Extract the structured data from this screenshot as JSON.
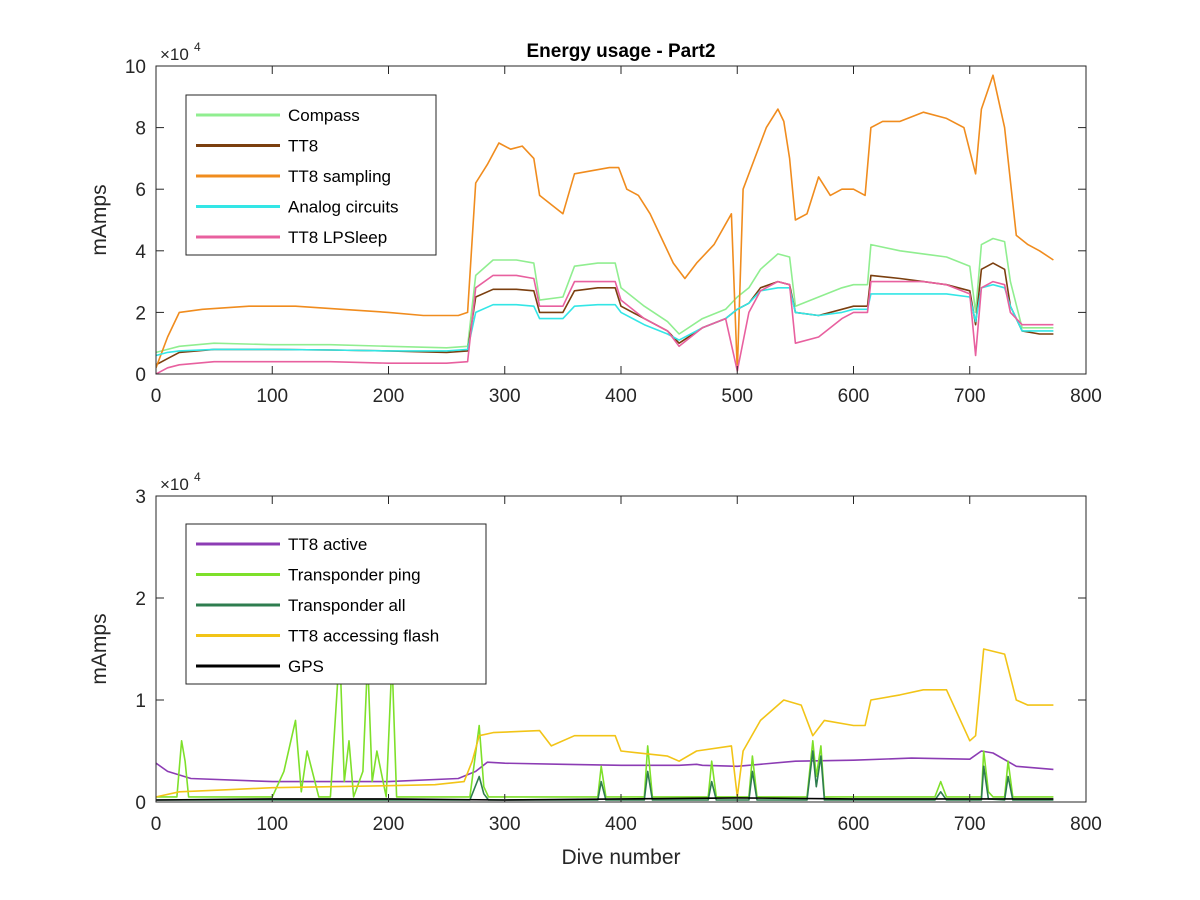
{
  "chart_data": [
    {
      "type": "line",
      "title": "Energy usage - Part2",
      "xlabel": "",
      "ylabel": "mAmps",
      "exponent_label": "×10",
      "exponent": "4",
      "xlim": [
        0,
        800
      ],
      "ylim": [
        0,
        100000
      ],
      "xticks": [
        0,
        100,
        200,
        300,
        400,
        500,
        600,
        700,
        800
      ],
      "xtick_labels": [
        "0",
        "100",
        "200",
        "300",
        "400",
        "500",
        "600",
        "700",
        "800"
      ],
      "yticks": [
        0,
        20000,
        40000,
        60000,
        80000,
        100000
      ],
      "ytick_labels": [
        "0",
        "2",
        "4",
        "6",
        "8",
        "10"
      ],
      "grid": false,
      "legend_position": "top-left",
      "series": [
        {
          "name": "Compass",
          "color": "#90ee90",
          "x": [
            0,
            10,
            20,
            50,
            100,
            150,
            200,
            250,
            268,
            275,
            290,
            310,
            325,
            330,
            350,
            360,
            380,
            395,
            400,
            420,
            440,
            450,
            470,
            490,
            500,
            510,
            520,
            535,
            545,
            550,
            570,
            590,
            600,
            612,
            615,
            640,
            660,
            680,
            700,
            705,
            710,
            720,
            730,
            735,
            745,
            760,
            772
          ],
          "y": [
            7000,
            8000,
            9000,
            10000,
            9500,
            9500,
            9000,
            8500,
            9000,
            32000,
            37000,
            37000,
            36000,
            24000,
            25000,
            35000,
            36000,
            36000,
            28000,
            22000,
            17000,
            13000,
            18000,
            21000,
            25000,
            28000,
            34000,
            39000,
            38000,
            22000,
            25000,
            28000,
            29000,
            29000,
            42000,
            40000,
            39000,
            38000,
            35000,
            20000,
            42000,
            44000,
            43000,
            30000,
            15000,
            15000,
            15000
          ]
        },
        {
          "name": "TT8",
          "color": "#7b3f0f",
          "x": [
            0,
            10,
            20,
            50,
            100,
            150,
            200,
            250,
            268,
            275,
            290,
            310,
            325,
            330,
            350,
            360,
            380,
            395,
            400,
            420,
            440,
            450,
            470,
            490,
            500,
            510,
            520,
            535,
            545,
            550,
            570,
            590,
            600,
            612,
            615,
            640,
            660,
            680,
            700,
            705,
            710,
            720,
            730,
            735,
            745,
            760,
            772
          ],
          "y": [
            3000,
            5000,
            7000,
            8000,
            8000,
            7800,
            7500,
            7000,
            7500,
            25000,
            27500,
            27500,
            27000,
            20000,
            20000,
            27000,
            28000,
            28000,
            22000,
            18000,
            14000,
            10000,
            15000,
            18000,
            21000,
            23000,
            28000,
            30000,
            29000,
            20000,
            19000,
            21000,
            22000,
            22000,
            32000,
            31000,
            30000,
            29000,
            27000,
            16000,
            34000,
            36000,
            34000,
            22000,
            14000,
            13000,
            13000
          ]
        },
        {
          "name": "TT8 sampling",
          "color": "#f08c1e",
          "x": [
            0,
            10,
            20,
            40,
            80,
            120,
            160,
            200,
            230,
            260,
            268,
            275,
            285,
            295,
            305,
            315,
            325,
            330,
            340,
            350,
            360,
            375,
            390,
            398,
            405,
            415,
            425,
            435,
            445,
            455,
            465,
            480,
            495,
            500,
            505,
            515,
            525,
            535,
            540,
            545,
            550,
            560,
            570,
            580,
            590,
            600,
            610,
            615,
            625,
            640,
            660,
            680,
            695,
            705,
            710,
            720,
            730,
            740,
            750,
            760,
            772
          ],
          "y": [
            2000,
            12000,
            20000,
            21000,
            22000,
            22000,
            21000,
            20000,
            19000,
            19000,
            20000,
            62000,
            68000,
            75000,
            73000,
            74000,
            70000,
            58000,
            55000,
            52000,
            65000,
            66000,
            67000,
            67000,
            60000,
            58000,
            52000,
            44000,
            36000,
            31000,
            36000,
            42000,
            52000,
            1000,
            60000,
            70000,
            80000,
            86000,
            82000,
            70000,
            50000,
            52000,
            64000,
            58000,
            60000,
            60000,
            58000,
            80000,
            82000,
            82000,
            85000,
            83000,
            80000,
            65000,
            86000,
            97000,
            80000,
            45000,
            42000,
            40000,
            37000
          ]
        },
        {
          "name": "Analog circuits",
          "color": "#33e6e6",
          "x": [
            0,
            10,
            20,
            50,
            100,
            150,
            200,
            250,
            268,
            275,
            290,
            310,
            325,
            330,
            350,
            360,
            380,
            395,
            400,
            420,
            440,
            450,
            470,
            490,
            500,
            510,
            520,
            535,
            545,
            550,
            570,
            590,
            600,
            612,
            615,
            640,
            660,
            680,
            700,
            705,
            710,
            720,
            730,
            735,
            745,
            760,
            772
          ],
          "y": [
            6000,
            7000,
            7500,
            8000,
            8000,
            7800,
            7500,
            7500,
            8000,
            20000,
            22500,
            22500,
            22000,
            18000,
            18000,
            22000,
            22500,
            22500,
            20000,
            16000,
            13000,
            11000,
            15000,
            18000,
            21000,
            23000,
            27000,
            28000,
            28000,
            20000,
            19000,
            20000,
            21000,
            21000,
            26000,
            26000,
            26000,
            26000,
            25000,
            17000,
            28000,
            29000,
            28000,
            22000,
            14000,
            14000,
            14000
          ]
        },
        {
          "name": "TT8 LPSleep",
          "color": "#e8609f",
          "x": [
            0,
            10,
            20,
            50,
            100,
            150,
            200,
            250,
            268,
            275,
            290,
            310,
            325,
            330,
            350,
            360,
            380,
            395,
            400,
            420,
            440,
            450,
            470,
            490,
            500,
            510,
            520,
            535,
            545,
            550,
            570,
            590,
            600,
            612,
            615,
            640,
            660,
            680,
            700,
            705,
            710,
            720,
            730,
            735,
            745,
            760,
            772
          ],
          "y": [
            0,
            2000,
            3000,
            4000,
            4000,
            4000,
            3500,
            3500,
            4000,
            28000,
            32000,
            32000,
            31000,
            22000,
            22000,
            30000,
            30000,
            30000,
            24000,
            18000,
            14000,
            9000,
            15000,
            18000,
            1000,
            20000,
            27000,
            30000,
            29000,
            10000,
            12000,
            18000,
            20000,
            20000,
            30000,
            30000,
            30000,
            29000,
            26000,
            6000,
            28000,
            30000,
            29000,
            20000,
            16000,
            16000,
            16000
          ]
        }
      ]
    },
    {
      "type": "line",
      "title": "",
      "xlabel": "Dive number",
      "ylabel": "mAmps",
      "exponent_label": "×10",
      "exponent": "4",
      "xlim": [
        0,
        800
      ],
      "ylim": [
        0,
        30000
      ],
      "xticks": [
        0,
        100,
        200,
        300,
        400,
        500,
        600,
        700,
        800
      ],
      "xtick_labels": [
        "0",
        "100",
        "200",
        "300",
        "400",
        "500",
        "600",
        "700",
        "800"
      ],
      "yticks": [
        0,
        10000,
        20000,
        30000
      ],
      "ytick_labels": [
        "0",
        "1",
        "2",
        "3"
      ],
      "grid": false,
      "legend_position": "top-left",
      "series": [
        {
          "name": "TT8 active",
          "color": "#8c3cb4",
          "x": [
            0,
            10,
            30,
            100,
            200,
            260,
            275,
            285,
            300,
            350,
            400,
            450,
            465,
            470,
            500,
            550,
            600,
            650,
            700,
            710,
            720,
            740,
            772
          ],
          "y": [
            3800,
            3000,
            2300,
            2000,
            2000,
            2300,
            3000,
            3900,
            3800,
            3700,
            3600,
            3600,
            3700,
            3600,
            3500,
            4000,
            4100,
            4300,
            4200,
            5000,
            4800,
            3500,
            3200
          ]
        },
        {
          "name": "Transponder ping",
          "color": "#7ee02a",
          "x": [
            0,
            18,
            22,
            25,
            28,
            60,
            100,
            110,
            120,
            125,
            130,
            140,
            150,
            158,
            162,
            166,
            170,
            178,
            182,
            186,
            190,
            198,
            203,
            207,
            210,
            250,
            270,
            278,
            282,
            286,
            290,
            380,
            383,
            387,
            390,
            420,
            423,
            427,
            430,
            475,
            478,
            482,
            485,
            510,
            513,
            517,
            520,
            560,
            565,
            568,
            572,
            575,
            670,
            675,
            680,
            710,
            712,
            716,
            720,
            730,
            733,
            737,
            740,
            772
          ],
          "y": [
            500,
            500,
            6000,
            4000,
            500,
            500,
            500,
            3000,
            8000,
            1000,
            5000,
            500,
            500,
            15000,
            2000,
            6000,
            500,
            3000,
            14000,
            2000,
            5000,
            500,
            14000,
            500,
            500,
            500,
            500,
            7500,
            1500,
            500,
            500,
            500,
            3500,
            500,
            500,
            500,
            5500,
            500,
            500,
            500,
            4000,
            500,
            500,
            500,
            4500,
            500,
            500,
            500,
            6000,
            2500,
            5500,
            500,
            500,
            2000,
            500,
            500,
            5000,
            1000,
            500,
            500,
            4000,
            500,
            500,
            500
          ]
        },
        {
          "name": "Transponder all",
          "color": "#2e7d4f",
          "x": [
            0,
            270,
            278,
            282,
            286,
            380,
            383,
            387,
            420,
            423,
            427,
            475,
            478,
            482,
            510,
            513,
            517,
            560,
            565,
            568,
            572,
            575,
            670,
            675,
            680,
            710,
            712,
            716,
            730,
            733,
            737,
            772
          ],
          "y": [
            200,
            200,
            2500,
            800,
            200,
            200,
            2000,
            200,
            200,
            3000,
            200,
            200,
            2000,
            200,
            200,
            3000,
            200,
            200,
            5000,
            1500,
            4500,
            200,
            200,
            1000,
            200,
            200,
            3500,
            300,
            200,
            2500,
            200,
            200
          ]
        },
        {
          "name": "TT8 accessing flash",
          "color": "#f2c417",
          "x": [
            0,
            20,
            60,
            100,
            150,
            200,
            240,
            265,
            272,
            278,
            290,
            330,
            340,
            360,
            395,
            400,
            440,
            450,
            465,
            495,
            500,
            505,
            520,
            540,
            555,
            565,
            575,
            600,
            610,
            615,
            640,
            660,
            680,
            700,
            705,
            712,
            730,
            740,
            750,
            772
          ],
          "y": [
            500,
            1000,
            1200,
            1400,
            1500,
            1600,
            1700,
            2000,
            4000,
            6500,
            6800,
            7000,
            5500,
            6500,
            6500,
            5000,
            4500,
            4000,
            5000,
            5500,
            500,
            5000,
            8000,
            10000,
            9500,
            6500,
            8000,
            7500,
            7500,
            10000,
            10500,
            11000,
            11000,
            6000,
            6500,
            15000,
            14500,
            10000,
            9500,
            9500
          ]
        },
        {
          "name": "GPS",
          "color": "#000000",
          "x": [
            0,
            100,
            200,
            300,
            400,
            500,
            600,
            700,
            772
          ],
          "y": [
            200,
            300,
            300,
            200,
            300,
            400,
            300,
            300,
            300
          ]
        }
      ]
    }
  ]
}
